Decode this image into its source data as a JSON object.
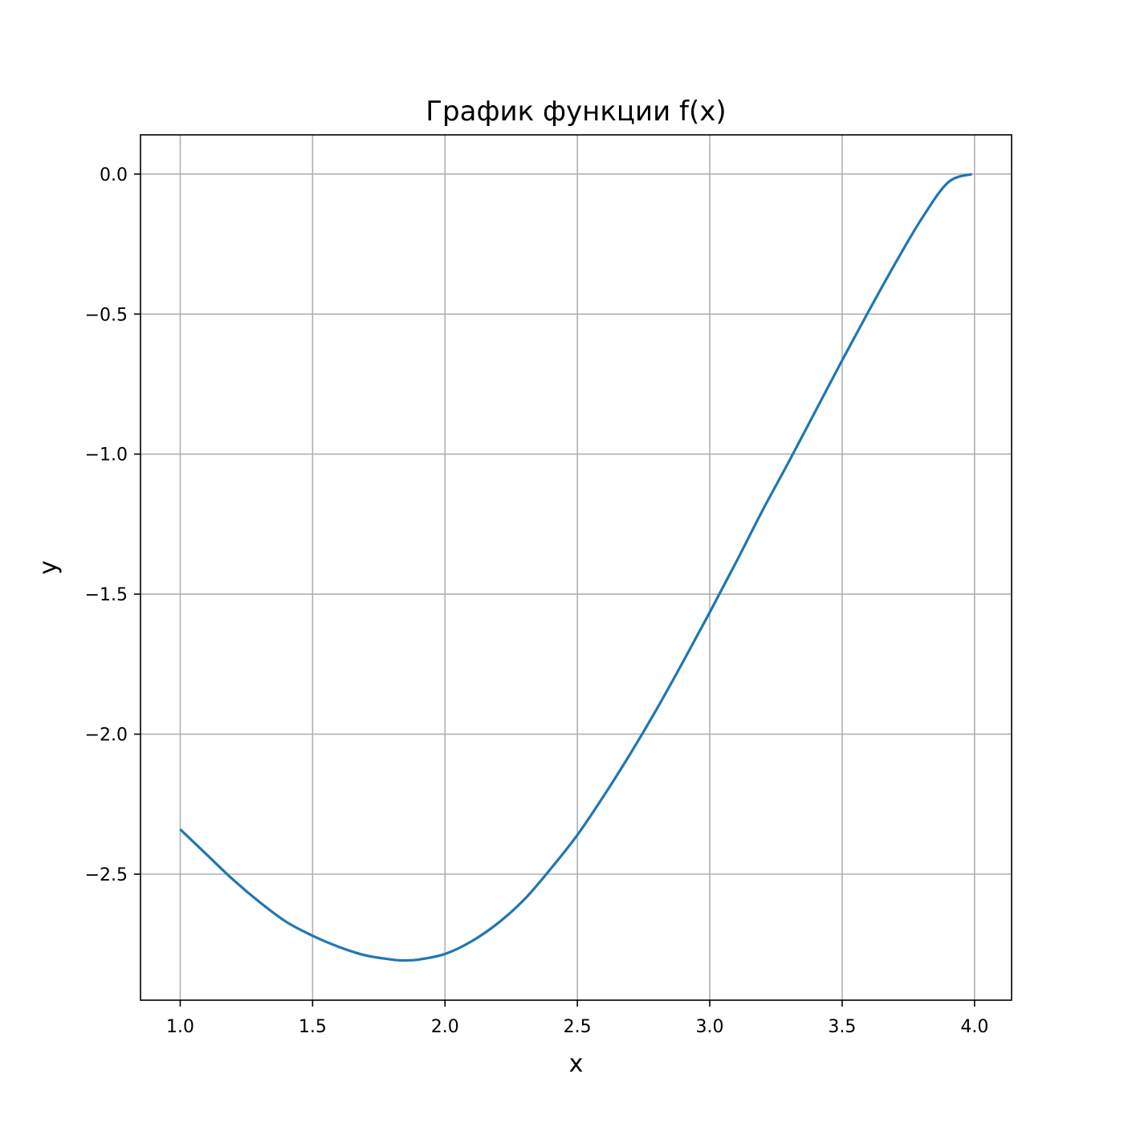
{
  "chart_data": {
    "type": "line",
    "title": "График функции f(x)",
    "xlabel": "x",
    "ylabel": "y",
    "xlim": [
      0.85,
      4.14
    ],
    "ylim": [
      -2.95,
      0.14
    ],
    "grid": true,
    "legend": "none",
    "line_color": "#1f77b4",
    "grid_color": "#b0b0b0",
    "x_ticks": [
      1.0,
      1.5,
      2.0,
      2.5,
      3.0,
      3.5,
      4.0
    ],
    "x_tick_labels": [
      "1.0",
      "1.5",
      "2.0",
      "2.5",
      "3.0",
      "3.5",
      "4.0"
    ],
    "y_ticks": [
      0.0,
      -0.5,
      -1.0,
      -1.5,
      -2.0,
      -2.5
    ],
    "y_tick_labels": [
      "0.0",
      "−0.5",
      "−1.0",
      "−1.5",
      "−2.0",
      "−2.5"
    ],
    "series": [
      {
        "x": [
          1.0,
          1.1,
          1.2,
          1.3,
          1.4,
          1.5,
          1.6,
          1.7,
          1.8,
          1.84,
          1.9,
          2.0,
          2.1,
          2.2,
          2.3,
          2.4,
          2.5,
          2.6,
          2.7,
          2.8,
          2.9,
          3.0,
          3.1,
          3.2,
          3.3,
          3.4,
          3.5,
          3.6,
          3.7,
          3.8,
          3.9,
          3.99
        ],
        "y": [
          -2.34,
          -2.43,
          -2.52,
          -2.6,
          -2.67,
          -2.72,
          -2.76,
          -2.79,
          -2.805,
          -2.808,
          -2.805,
          -2.785,
          -2.74,
          -2.675,
          -2.59,
          -2.48,
          -2.36,
          -2.22,
          -2.07,
          -1.91,
          -1.74,
          -1.565,
          -1.385,
          -1.2,
          -1.025,
          -0.845,
          -0.665,
          -0.49,
          -0.32,
          -0.16,
          -0.03,
          0.0
        ]
      }
    ]
  }
}
